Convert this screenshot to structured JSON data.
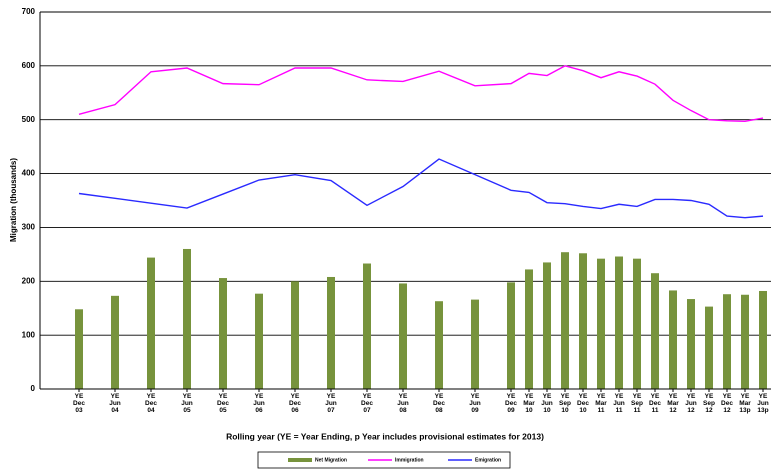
{
  "chart_data": {
    "type": "bar-line",
    "y_label": "Migration (thousands)",
    "x_label": "Rolling year (YE = Year Ending,  p  Year includes provisional estimates for 2013)",
    "categories": [
      "YE Dec 03",
      "YE Jun 04",
      "YE Dec 04",
      "YE Jun 05",
      "YE Dec 05",
      "YE Jun 06",
      "YE Dec 06",
      "YE Jun 07",
      "YE Dec 07",
      "YE Jun 08",
      "YE Dec 08",
      "YE Jun 09",
      "YE Dec 09",
      "YE Mar 10",
      "YE Jun 10",
      "YE Sep 10",
      "YE Dec 10",
      "YE Mar 11",
      "YE Jun 11",
      "YE Sep 11",
      "YE Dec 11",
      "YE Mar 12",
      "YE Jun 12",
      "YE Sep 12",
      "YE Dec 12",
      "YE Mar 13p",
      "YE Jun 13p"
    ],
    "series": [
      {
        "name": "Net Migration",
        "kind": "bar",
        "color": "#77933c",
        "values": [
          148,
          173,
          244,
          260,
          206,
          177,
          200,
          208,
          233,
          196,
          163,
          166,
          198,
          222,
          235,
          254,
          252,
          242,
          246,
          242,
          215,
          183,
          167,
          153,
          176,
          175,
          182
        ]
      },
      {
        "name": "Immigration",
        "kind": "line",
        "color": "#ff00ff",
        "values": [
          510,
          528,
          589,
          596,
          567,
          565,
          596,
          596,
          574,
          571,
          590,
          563,
          567,
          586,
          582,
          600,
          591,
          578,
          589,
          581,
          566,
          536,
          517,
          500,
          498,
          497,
          503
        ]
      },
      {
        "name": "Emigration",
        "kind": "line",
        "color": "#2a2aff",
        "values": [
          363,
          354,
          345,
          336,
          362,
          388,
          398,
          387,
          341,
          376,
          427,
          398,
          369,
          365,
          346,
          344,
          339,
          335,
          343,
          339,
          352,
          352,
          350,
          343,
          321,
          318,
          321
        ]
      }
    ],
    "ylim": [
      0,
      700
    ],
    "yticks": [
      0,
      100,
      200,
      300,
      400,
      500,
      600,
      700
    ],
    "grid": true
  }
}
